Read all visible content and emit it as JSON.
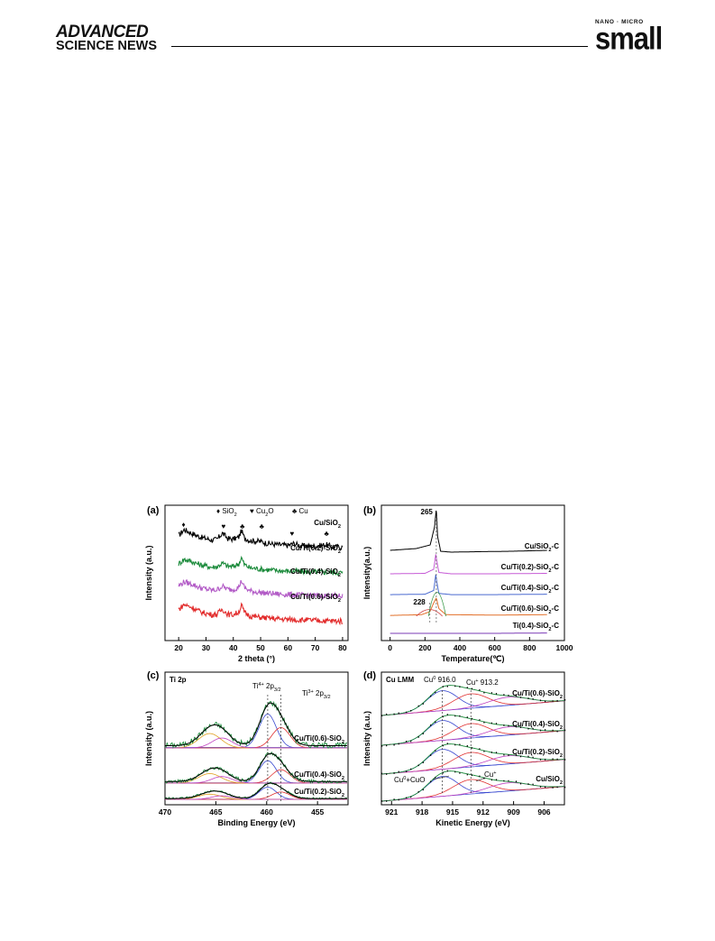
{
  "header": {
    "brand_line1": "ADVANCED",
    "brand_line2": "SCIENCE NEWS",
    "journal_tag": "NANO · MICRO",
    "journal_name": "small"
  },
  "figure": {
    "panels": [
      {
        "label": "(a)"
      },
      {
        "label": "(b)"
      },
      {
        "label": "(c)",
        "title": "Ti 2p"
      },
      {
        "label": "(d)",
        "title": "Cu LMM"
      }
    ]
  },
  "chart_data": [
    {
      "type": "line",
      "panel": "(a)",
      "xlabel": "2 theta (°)",
      "ylabel": "Intensity (a.u.)",
      "xlim": [
        15,
        82
      ],
      "xticks": [
        20,
        30,
        40,
        50,
        60,
        70,
        80
      ],
      "legend": [
        {
          "symbol": "♦",
          "label": "SiO",
          "sub": "2"
        },
        {
          "symbol": "♥",
          "label": "Cu",
          "sub": "2",
          "label_tail": "O"
        },
        {
          "symbol": "♣",
          "label": "Cu"
        }
      ],
      "peak_markers": [
        {
          "x": 21.8,
          "symbol": "♦",
          "color": "#000000"
        },
        {
          "x": 36.4,
          "symbol": "♥",
          "color": "#000000"
        },
        {
          "x": 43.3,
          "symbol": "♣",
          "color": "#000000"
        },
        {
          "x": 50.4,
          "symbol": "♣",
          "color": "#000000"
        },
        {
          "x": 61.5,
          "symbol": "♥",
          "color": "#000000"
        },
        {
          "x": 74.1,
          "symbol": "♣",
          "color": "#000000"
        }
      ],
      "series": [
        {
          "label_main": "Cu/SiO",
          "label_sub": "2",
          "color": "#000000",
          "x": [
            20,
            22,
            25,
            28,
            32,
            34,
            36,
            38,
            40,
            42,
            43,
            44,
            46,
            50,
            52,
            55,
            60,
            62,
            65,
            70,
            74,
            76,
            80
          ],
          "y": [
            0.7,
            1.0,
            0.8,
            0.62,
            0.48,
            0.5,
            0.82,
            0.55,
            0.52,
            0.62,
            0.95,
            0.6,
            0.45,
            0.4,
            0.32,
            0.26,
            0.2,
            0.3,
            0.18,
            0.16,
            0.24,
            0.14,
            0.12
          ]
        },
        {
          "label_main": "Cu/Ti(0.2)-SiO",
          "label_sub": "2",
          "color": "#1a8a3a",
          "x": [
            20,
            22,
            25,
            28,
            32,
            34,
            36,
            38,
            40,
            42,
            43,
            44,
            46,
            50,
            55,
            60,
            65,
            70,
            75,
            80
          ],
          "y": [
            0.55,
            0.78,
            0.65,
            0.5,
            0.38,
            0.4,
            0.58,
            0.42,
            0.42,
            0.55,
            0.85,
            0.52,
            0.35,
            0.28,
            0.22,
            0.18,
            0.16,
            0.14,
            0.12,
            0.1
          ]
        },
        {
          "label_main": "Cu/Ti(0.4)-SiO",
          "label_sub": "2",
          "color": "#b25ac6",
          "x": [
            20,
            22,
            25,
            28,
            32,
            34,
            36,
            38,
            40,
            42,
            43,
            44,
            46,
            50,
            55,
            60,
            65,
            70,
            75,
            80
          ],
          "y": [
            0.62,
            0.82,
            0.7,
            0.52,
            0.4,
            0.42,
            0.6,
            0.44,
            0.44,
            0.56,
            0.88,
            0.54,
            0.36,
            0.28,
            0.22,
            0.18,
            0.15,
            0.13,
            0.12,
            0.1
          ]
        },
        {
          "label_main": "Cu/Ti(0.6)-SiO",
          "label_sub": "2",
          "color": "#e22a2a",
          "x": [
            20,
            22,
            25,
            28,
            32,
            34,
            36,
            38,
            40,
            42,
            43,
            44,
            46,
            50,
            55,
            60,
            65,
            70,
            75,
            80
          ],
          "y": [
            0.7,
            0.95,
            0.8,
            0.58,
            0.44,
            0.46,
            0.72,
            0.46,
            0.44,
            0.58,
            0.92,
            0.56,
            0.38,
            0.3,
            0.24,
            0.2,
            0.17,
            0.15,
            0.13,
            0.11
          ]
        }
      ]
    },
    {
      "type": "line",
      "panel": "(b)",
      "xlabel": "Temperature(℃)",
      "ylabel": "Intensity(a.u.)",
      "xlim": [
        -50,
        1000
      ],
      "xticks": [
        0,
        200,
        400,
        600,
        800,
        1000
      ],
      "annotations": [
        {
          "text": "265",
          "x": 265
        },
        {
          "text": "228",
          "x": 228
        }
      ],
      "series": [
        {
          "label_main": "Cu/SiO",
          "label_sub": "2",
          "label_tail": "-C",
          "color": "#000000",
          "x": [
            0,
            150,
            230,
            255,
            265,
            272,
            290,
            350,
            500,
            700,
            900
          ],
          "y": [
            0.08,
            0.12,
            0.2,
            0.6,
            1.0,
            0.4,
            0.06,
            0.04,
            0.05,
            0.06,
            0.08
          ]
        },
        {
          "label_main": "Cu/Ti(0.2)-SiO",
          "label_sub": "2",
          "label_tail": "-C",
          "color": "#c65ad6",
          "x": [
            0,
            200,
            250,
            262,
            268,
            280,
            350,
            600,
            900
          ],
          "y": [
            0.02,
            0.03,
            0.12,
            0.45,
            0.3,
            0.05,
            0.02,
            0.02,
            0.03
          ]
        },
        {
          "label_main": "Cu/Ti(0.4)-SiO",
          "label_sub": "2",
          "label_tail": "-C",
          "color": "#4a6ad0",
          "x": [
            0,
            200,
            250,
            262,
            268,
            280,
            350,
            600,
            900
          ],
          "y": [
            0.02,
            0.03,
            0.12,
            0.5,
            0.32,
            0.05,
            0.02,
            0.02,
            0.03
          ]
        },
        {
          "label_main": "Cu/Ti(0.6)-SiO",
          "label_sub": "2",
          "label_tail": "-C",
          "color": "#e2702a",
          "x": [
            0,
            180,
            228,
            250,
            265,
            280,
            320,
            600,
            900
          ],
          "y": [
            0.02,
            0.04,
            0.12,
            0.35,
            0.48,
            0.2,
            0.04,
            0.03,
            0.04
          ]
        },
        {
          "label_main": "Ti(0.4)-SiO",
          "label_sub": "2",
          "label_tail": "-C",
          "color": "#7a3ab6",
          "x": [
            0,
            300,
            600,
            900
          ],
          "y": [
            0.0,
            0.0,
            0.0,
            0.01
          ]
        }
      ]
    },
    {
      "type": "line",
      "panel": "(c)",
      "title": "Ti 2p",
      "xlabel": "Binding Energy (eV)",
      "ylabel": "Intensity (a.u.)",
      "xlim": [
        470,
        452
      ],
      "xticks": [
        470,
        465,
        460,
        455
      ],
      "annotations": [
        {
          "text_main": "Ti",
          "sup": "4+",
          "text_tail": " 2p",
          "sub": "3/2",
          "x": 459.9
        },
        {
          "text_main": "Ti",
          "sup": "3+",
          "text_tail": " 2p",
          "sub": "3/2",
          "x": 458.6
        }
      ],
      "series": [
        {
          "label_main": "Cu/Ti(0.6)-SiO",
          "label_sub": "2"
        },
        {
          "label_main": "Cu/Ti(0.4)-SiO",
          "label_sub": "2"
        },
        {
          "label_main": "Cu/Ti(0.2)-SiO",
          "label_sub": "2"
        }
      ]
    },
    {
      "type": "line",
      "panel": "(d)",
      "title": "Cu LMM",
      "xlabel": "Kinetic Energy (eV)",
      "ylabel": "Intensity (a.u.)",
      "xlim": [
        922,
        904
      ],
      "xticks": [
        921,
        918,
        915,
        912,
        909,
        906
      ],
      "annotations": [
        {
          "text_main": "Cu",
          "sup": "0",
          "text_tail": " 916.0",
          "x": 916.0
        },
        {
          "text_main": "Cu",
          "sup": "+",
          "text_tail": " 913.2",
          "x": 913.2
        },
        {
          "text_main": "Cu",
          "sup": "+",
          "text_tail": "",
          "x": 912.5
        },
        {
          "text_main": "Cu",
          "sup": "0",
          "text_tail": "+CuO",
          "x": 916.5
        }
      ],
      "series": [
        {
          "label_main": "Cu/Ti(0.6)-SiO",
          "label_sub": "2"
        },
        {
          "label_main": "Cu/Ti(0.4)-SiO",
          "label_sub": "2"
        },
        {
          "label_main": "Cu/Ti(0.2)-SiO",
          "label_sub": "2"
        },
        {
          "label_main": "Cu/SiO",
          "label_sub": "2"
        }
      ]
    }
  ]
}
